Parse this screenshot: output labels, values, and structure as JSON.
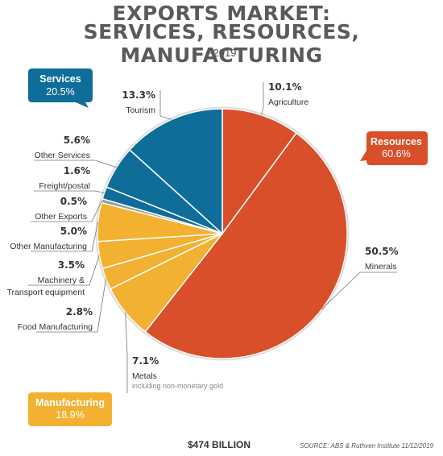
{
  "header": {
    "title_line1": "EXPORTS MARKET:",
    "title_line2": "SERVICES, RESOURCES, MANUFACTURING",
    "subtitle": "F2019"
  },
  "footer": {
    "total": "$474 BILLION",
    "source": "SOURCE: ABS & Ruthven Institute 11/12/2019"
  },
  "groups": [
    {
      "key": "services",
      "name": "Services",
      "value_label": "20.5%",
      "color": "#0f6e99"
    },
    {
      "key": "resources",
      "name": "Resources",
      "value_label": "60.6%",
      "color": "#d84f2a"
    },
    {
      "key": "manufacturing",
      "name": "Manufacturing",
      "value_label": "18.9%",
      "color": "#f2b130"
    }
  ],
  "chart_data": {
    "type": "pie",
    "title": "EXPORTS MARKET: SERVICES, RESOURCES, MANUFACTURING",
    "subtitle": "F2019",
    "slices": [
      {
        "label": "Agriculture",
        "value": 10.1,
        "pct_label": "10.1%",
        "group": "resources",
        "color": "#d84f2a"
      },
      {
        "label": "Minerals",
        "value": 50.5,
        "pct_label": "50.5%",
        "group": "resources",
        "color": "#d84f2a"
      },
      {
        "label": "Metals",
        "note": "including non-monetary gold",
        "value": 7.1,
        "pct_label": "7.1%",
        "group": "manufacturing",
        "color": "#f2b130"
      },
      {
        "label": "Food Manufacturing",
        "value": 2.8,
        "pct_label": "2.8%",
        "group": "manufacturing",
        "color": "#f2b130"
      },
      {
        "label": "Machinery & Transport equipment",
        "value": 3.5,
        "pct_label": "3.5%",
        "group": "manufacturing",
        "color": "#f2b130"
      },
      {
        "label": "Other Manufacturing",
        "value": 5.0,
        "pct_label": "5.0%",
        "group": "manufacturing",
        "color": "#f2b130"
      },
      {
        "label": "Other Exports",
        "value": 0.5,
        "pct_label": "0.5%",
        "group": "other",
        "color": "#9a9a9a"
      },
      {
        "label": "Freight/postal",
        "value": 1.6,
        "pct_label": "1.6%",
        "group": "services",
        "color": "#0f6e99"
      },
      {
        "label": "Other Services",
        "value": 5.6,
        "pct_label": "5.6%",
        "group": "services",
        "color": "#0f6e99"
      },
      {
        "label": "Tourism",
        "value": 13.3,
        "pct_label": "13.3%",
        "group": "services",
        "color": "#0f6e99"
      }
    ]
  }
}
